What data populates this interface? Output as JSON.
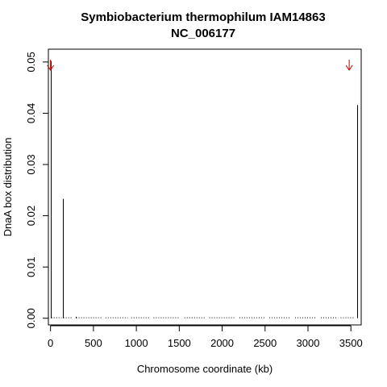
{
  "chart_data": {
    "type": "bar",
    "title": "Symbiobacterium thermophilum IAM14863",
    "subtitle": "NC_006177",
    "xlabel": "Chromosome coordinate (kb)",
    "ylabel": "DnaA box distribution",
    "xlim": [
      -25,
      3620
    ],
    "ylim": [
      -0.0013,
      0.0525
    ],
    "xticks": [
      "0",
      "500",
      "1000",
      "1500",
      "2000",
      "2500",
      "3000",
      "3500"
    ],
    "yticks": [
      "0.00",
      "0.01",
      "0.02",
      "0.03",
      "0.04",
      "0.05"
    ],
    "grid": false,
    "bar_color": "#000000",
    "arrow_color": "#cc0000",
    "bars": {
      "x": [
        0,
        140,
        290,
        3570
      ],
      "y": [
        0.0502,
        0.0233,
        0.0003,
        0.0416
      ]
    },
    "baseline_segments_x": [
      [
        10,
        130
      ],
      [
        150,
        260
      ],
      [
        300,
        600
      ],
      [
        640,
        900
      ],
      [
        940,
        1150
      ],
      [
        1200,
        1500
      ],
      [
        1560,
        1800
      ],
      [
        1850,
        2150
      ],
      [
        2200,
        2500
      ],
      [
        2550,
        2800
      ],
      [
        2850,
        3100
      ],
      [
        3150,
        3350
      ],
      [
        3380,
        3550
      ]
    ],
    "baseline_value": 0.0001,
    "arrows": [
      {
        "x": 0,
        "symbol": "↓"
      },
      {
        "x": 3480,
        "symbol": "↓"
      }
    ]
  }
}
